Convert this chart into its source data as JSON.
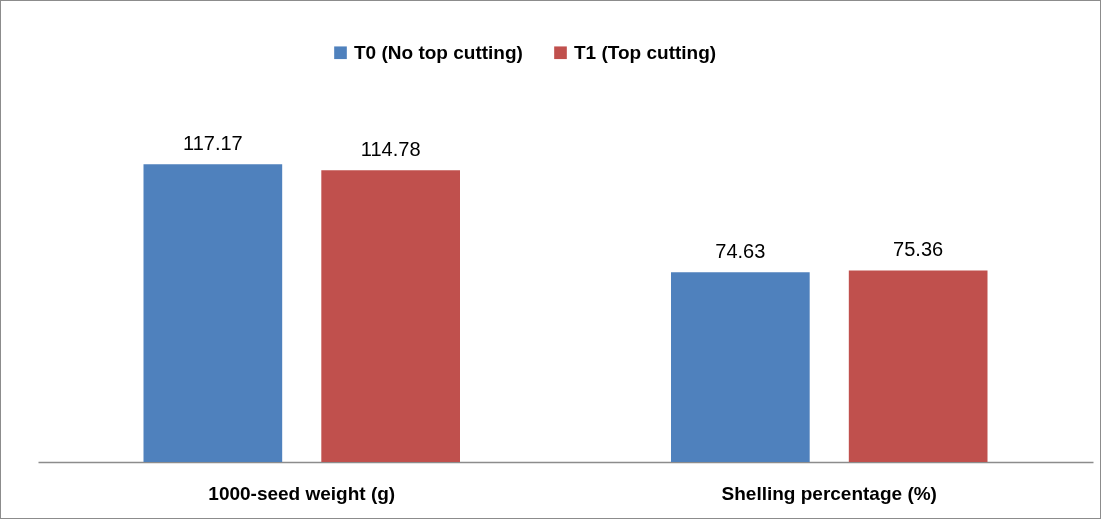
{
  "chart_data": {
    "type": "bar",
    "categories": [
      "1000-seed weight (g)",
      "Shelling percentage (%)"
    ],
    "series": [
      {
        "name": "T0 (No top cutting)",
        "color": "#4f81bd",
        "values": [
          117.17,
          74.63
        ]
      },
      {
        "name": "T1 (Top cutting)",
        "color": "#c0504d",
        "values": [
          114.78,
          75.36
        ]
      }
    ],
    "data_labels": true,
    "legend": "top",
    "grid": false
  }
}
